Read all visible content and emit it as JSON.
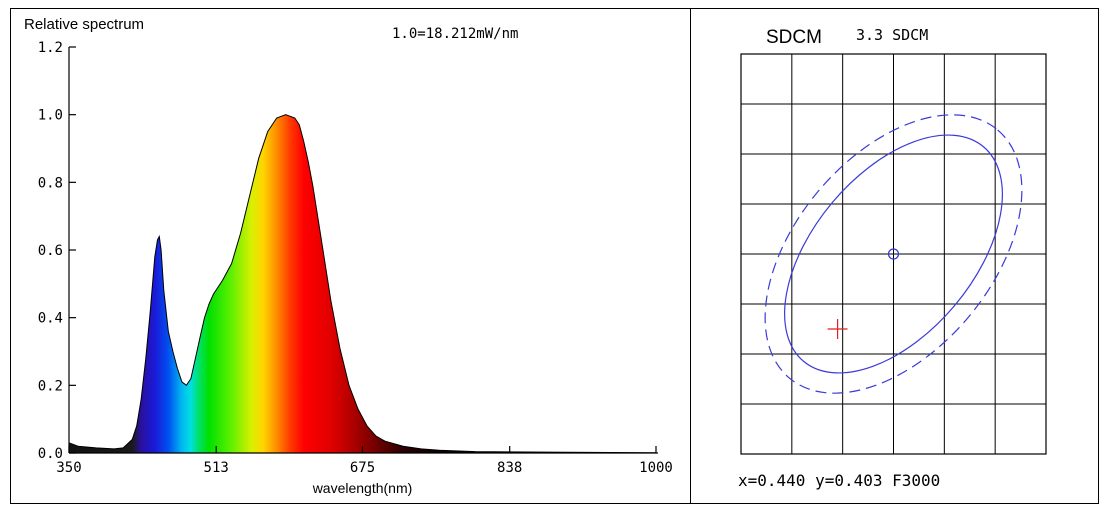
{
  "chart_data": [
    {
      "type": "area",
      "title": "Relative spectrum",
      "annotation": "1.0=18.212mW/nm",
      "xlabel": "wavelength(nm)",
      "ylabel": "Relative spectrum",
      "xlim": [
        350,
        1000
      ],
      "ylim": [
        0,
        1.2
      ],
      "x_ticks": [
        "350",
        "513",
        "675",
        "838",
        "1000"
      ],
      "y_ticks": [
        "0.0",
        "0.2",
        "0.4",
        "0.6",
        "0.8",
        "1.0",
        "1.2"
      ],
      "fill": "rainbow-gradient-by-wavelength",
      "series": [
        {
          "name": "Relative spectrum",
          "x": [
            350,
            360,
            380,
            400,
            410,
            420,
            425,
            430,
            435,
            440,
            445,
            448,
            450,
            452,
            455,
            460,
            465,
            470,
            475,
            480,
            485,
            490,
            495,
            500,
            505,
            510,
            520,
            530,
            540,
            550,
            560,
            570,
            580,
            590,
            600,
            605,
            610,
            615,
            620,
            630,
            640,
            650,
            660,
            670,
            680,
            690,
            700,
            720,
            740,
            760,
            800,
            900,
            1000
          ],
          "y": [
            0.03,
            0.02,
            0.015,
            0.012,
            0.015,
            0.04,
            0.08,
            0.16,
            0.28,
            0.42,
            0.58,
            0.63,
            0.64,
            0.6,
            0.48,
            0.36,
            0.3,
            0.25,
            0.21,
            0.2,
            0.22,
            0.28,
            0.34,
            0.4,
            0.44,
            0.47,
            0.51,
            0.56,
            0.65,
            0.76,
            0.87,
            0.95,
            0.99,
            1.0,
            0.99,
            0.97,
            0.92,
            0.86,
            0.79,
            0.62,
            0.45,
            0.31,
            0.2,
            0.13,
            0.08,
            0.05,
            0.035,
            0.02,
            0.012,
            0.008,
            0.004,
            0.002,
            0.001
          ]
        }
      ]
    },
    {
      "type": "scatter",
      "title": "SDCM",
      "sdcm_value": "3.3 SDCM",
      "grid_columns": 6,
      "grid_rows": 8,
      "target": {
        "label": "target",
        "symbol": "circle",
        "color": "#3b3bd8"
      },
      "measured": {
        "label": "measured",
        "symbol": "cross",
        "color": "#e02020",
        "offset_steps": [
          -1.1,
          -1.5
        ]
      },
      "ellipses": [
        {
          "name": "inner ellipse",
          "style": "solid",
          "color": "#3b3bd8"
        },
        {
          "name": "outer ellipse",
          "style": "dashed",
          "color": "#3b3bd8"
        }
      ],
      "readout": "x=0.440 y=0.403 F3000"
    }
  ]
}
